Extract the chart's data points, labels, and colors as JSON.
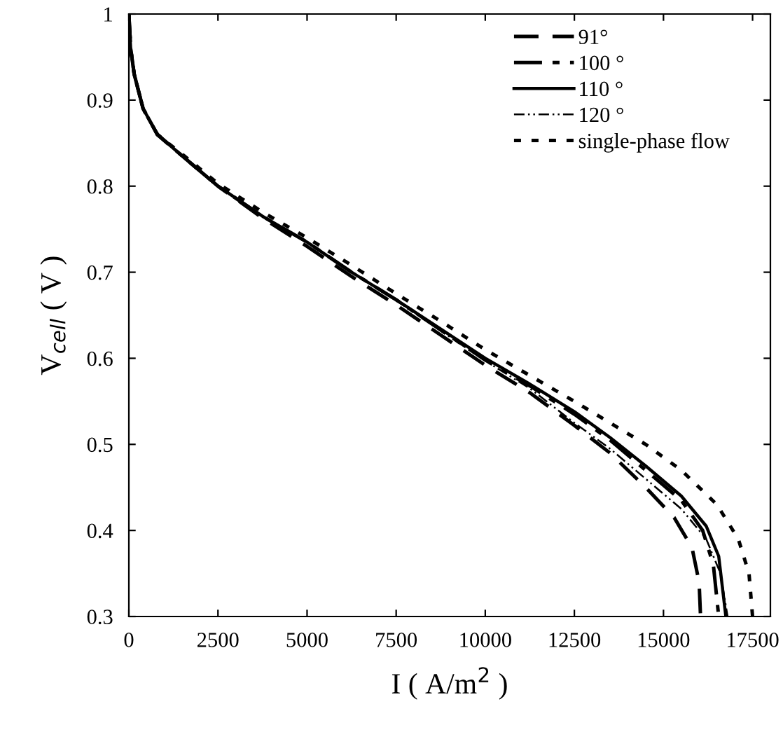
{
  "chart_data": {
    "type": "line",
    "xlabel": "I ( A/m$^{2}$ )",
    "ylabel": "V$_{cell}$ ( V )",
    "xlim": [
      0,
      18000
    ],
    "xticks": [
      0,
      2500,
      5000,
      7500,
      10000,
      12500,
      15000,
      17500
    ],
    "ylim": [
      0.3,
      1
    ],
    "yticks": [
      0.3,
      0.4,
      0.5,
      0.6,
      0.7,
      0.8,
      0.9,
      1
    ],
    "grid": false,
    "legend": "top right",
    "marker": "none",
    "series": [
      {
        "name": "91°",
        "color": "#000000",
        "line_style": "dashed",
        "x": [
          0,
          50,
          150,
          400,
          800,
          1500,
          2500,
          3750,
          5000,
          6250,
          7500,
          8750,
          10000,
          11250,
          12500,
          13500,
          14500,
          15300,
          15800,
          16000,
          16040
        ],
        "values": [
          1.0,
          0.96,
          0.93,
          0.89,
          0.86,
          0.835,
          0.8,
          0.763,
          0.73,
          0.695,
          0.662,
          0.627,
          0.592,
          0.56,
          0.522,
          0.49,
          0.45,
          0.415,
          0.38,
          0.34,
          0.3
        ]
      },
      {
        "name": "100 °",
        "color": "#000000",
        "line_style": "dashdot",
        "x": [
          0,
          50,
          150,
          400,
          800,
          1500,
          2500,
          3750,
          5000,
          6250,
          7500,
          8750,
          10000,
          11250,
          12500,
          13500,
          14500,
          15500,
          16100,
          16400,
          16550
        ],
        "values": [
          1.0,
          0.96,
          0.93,
          0.89,
          0.86,
          0.835,
          0.8,
          0.765,
          0.735,
          0.7,
          0.668,
          0.633,
          0.598,
          0.568,
          0.535,
          0.505,
          0.47,
          0.435,
          0.4,
          0.36,
          0.3
        ]
      },
      {
        "name": "110 °",
        "color": "#000000",
        "line_style": "solid",
        "x": [
          0,
          50,
          150,
          400,
          800,
          1500,
          2500,
          3750,
          5000,
          6250,
          7500,
          8750,
          10000,
          11250,
          12500,
          13500,
          14500,
          15500,
          16200,
          16550,
          16750
        ],
        "values": [
          1.0,
          0.96,
          0.93,
          0.89,
          0.86,
          0.835,
          0.8,
          0.765,
          0.735,
          0.7,
          0.668,
          0.634,
          0.6,
          0.57,
          0.538,
          0.508,
          0.475,
          0.44,
          0.405,
          0.37,
          0.3
        ]
      },
      {
        "name": "120 °",
        "color": "#000000",
        "line_style": "dashdotdot",
        "x": [
          0,
          50,
          150,
          400,
          800,
          1500,
          2500,
          3750,
          5000,
          6250,
          7500,
          8750,
          10000,
          11250,
          12500,
          13500,
          14500,
          15500,
          16200,
          16600,
          16800
        ],
        "values": [
          1.0,
          0.96,
          0.93,
          0.89,
          0.86,
          0.835,
          0.8,
          0.765,
          0.735,
          0.7,
          0.667,
          0.632,
          0.597,
          0.565,
          0.525,
          0.495,
          0.46,
          0.425,
          0.39,
          0.35,
          0.3
        ]
      },
      {
        "name": "single-phase flow",
        "color": "#000000",
        "line_style": "dotted",
        "x": [
          0,
          50,
          150,
          400,
          800,
          1500,
          2500,
          3750,
          5000,
          6250,
          7500,
          8750,
          10000,
          11250,
          12500,
          13500,
          14500,
          15500,
          16500,
          17100,
          17400,
          17500
        ],
        "values": [
          1.0,
          0.96,
          0.93,
          0.89,
          0.86,
          0.837,
          0.803,
          0.77,
          0.74,
          0.708,
          0.675,
          0.643,
          0.61,
          0.58,
          0.55,
          0.525,
          0.5,
          0.47,
          0.43,
          0.39,
          0.35,
          0.3
        ]
      }
    ]
  }
}
